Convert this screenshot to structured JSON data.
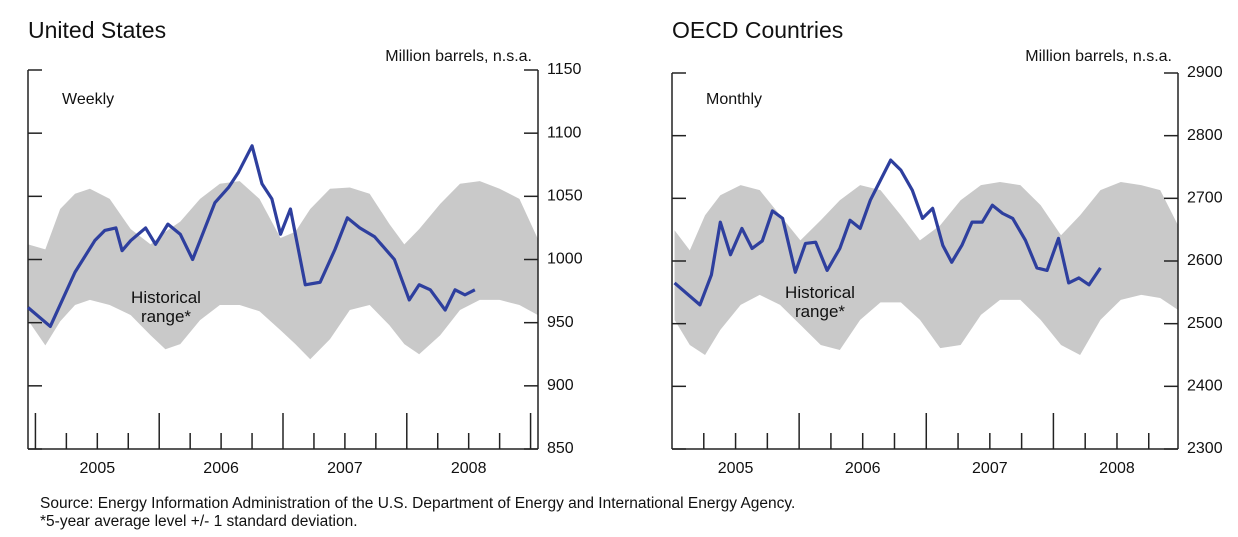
{
  "chart_data": [
    {
      "type": "line",
      "title": "United States",
      "y_axis_label": "Million barrels, n.s.a.",
      "note": "Weekly",
      "band_label": "Historical range*",
      "color": "#2e3f9e",
      "x": [
        2004.94,
        2005.12,
        2005.32,
        2005.48,
        2005.56,
        2005.65,
        2005.7,
        2005.77,
        2005.89,
        2005.97,
        2006.07,
        2006.17,
        2006.27,
        2006.33,
        2006.45,
        2006.56,
        2006.64,
        2006.75,
        2006.83,
        2006.91,
        2006.98,
        2007.06,
        2007.18,
        2007.3,
        2007.42,
        2007.52,
        2007.62,
        2007.74,
        2007.9,
        2008.02,
        2008.1,
        2008.19,
        2008.31,
        2008.39,
        2008.47,
        2008.55
      ],
      "values": [
        962,
        947,
        990,
        1015,
        1023,
        1025,
        1007,
        1015,
        1025,
        1012,
        1028,
        1020,
        1000,
        1015,
        1045,
        1057,
        1069,
        1090,
        1060,
        1048,
        1020,
        1040,
        980,
        982,
        1008,
        1033,
        1025,
        1018,
        1000,
        968,
        980,
        976,
        960,
        976,
        972,
        976
      ],
      "band": {
        "color": "#c9c9c9",
        "x": [
          2004.94,
          2005.08,
          2005.2,
          2005.32,
          2005.44,
          2005.6,
          2005.77,
          2005.93,
          2006.05,
          2006.17,
          2006.33,
          2006.49,
          2006.65,
          2006.81,
          2006.98,
          2007.1,
          2007.22,
          2007.38,
          2007.54,
          2007.7,
          2007.86,
          2007.98,
          2008.1,
          2008.27,
          2008.43,
          2008.59,
          2008.75,
          2008.91,
          2009.06
        ],
        "upper": [
          1012,
          1008,
          1040,
          1052,
          1056,
          1048,
          1024,
          1012,
          1022,
          1030,
          1048,
          1060,
          1062,
          1048,
          1017,
          1022,
          1040,
          1056,
          1057,
          1052,
          1028,
          1012,
          1024,
          1044,
          1060,
          1062,
          1056,
          1048,
          1016
        ],
        "lower": [
          952,
          932,
          951,
          964,
          968,
          964,
          956,
          940,
          929,
          933,
          952,
          964,
          964,
          959,
          944,
          933,
          921,
          937,
          960,
          964,
          948,
          933,
          925,
          940,
          960,
          968,
          968,
          964,
          956
        ]
      },
      "xlim": [
        2004.94,
        2009.06
      ],
      "ylim": [
        850,
        1150
      ],
      "yticks": [
        850,
        900,
        950,
        1000,
        1050,
        1100,
        1150
      ],
      "xticks": [
        {
          "value": 2005.5,
          "label": "2005"
        },
        {
          "value": 2006.5,
          "label": "2006"
        },
        {
          "value": 2007.5,
          "label": "2007"
        },
        {
          "value": 2008.5,
          "label": "2008"
        }
      ],
      "x_major_ticks": [
        2005,
        2006,
        2007,
        2008,
        2009
      ],
      "x_minor_ticks": [
        2005.25,
        2005.75,
        2006.25,
        2006.75,
        2007.25,
        2007.75,
        2008.25,
        2008.75
      ]
    },
    {
      "type": "line",
      "title": "OECD Countries",
      "y_axis_label": "Million barrels, n.s.a.",
      "note": "Monthly",
      "band_label": "Historical range*",
      "color": "#2e3f9e",
      "x": [
        2005.02,
        2005.22,
        2005.31,
        2005.38,
        2005.46,
        2005.55,
        2005.63,
        2005.71,
        2005.79,
        2005.87,
        2005.97,
        2006.05,
        2006.13,
        2006.22,
        2006.32,
        2006.4,
        2006.48,
        2006.56,
        2006.64,
        2006.72,
        2006.8,
        2006.89,
        2006.97,
        2007.05,
        2007.13,
        2007.2,
        2007.28,
        2007.36,
        2007.44,
        2007.52,
        2007.6,
        2007.68,
        2007.78,
        2007.87,
        2007.95,
        2008.04,
        2008.12,
        2008.2,
        2008.28,
        2008.37
      ],
      "values": [
        2565,
        2530,
        2578,
        2662,
        2610,
        2652,
        2620,
        2632,
        2680,
        2668,
        2582,
        2628,
        2630,
        2585,
        2620,
        2665,
        2652,
        2697,
        2729,
        2761,
        2745,
        2713,
        2668,
        2684,
        2625,
        2598,
        2625,
        2662,
        2662,
        2689,
        2676,
        2668,
        2633,
        2589,
        2585,
        2636,
        2565,
        2573,
        2562,
        2589
      ],
      "band": {
        "color": "#c9c9c9",
        "x": [
          2005.02,
          2005.14,
          2005.26,
          2005.38,
          2005.54,
          2005.69,
          2005.85,
          2006.01,
          2006.17,
          2006.32,
          2006.48,
          2006.64,
          2006.8,
          2006.95,
          2007.11,
          2007.27,
          2007.43,
          2007.58,
          2007.74,
          2007.9,
          2008.06,
          2008.21,
          2008.37,
          2008.53,
          2008.69,
          2008.84,
          2008.98
        ],
        "upper": [
          2649,
          2617,
          2673,
          2705,
          2721,
          2713,
          2673,
          2633,
          2665,
          2697,
          2721,
          2713,
          2673,
          2633,
          2657,
          2697,
          2721,
          2726,
          2721,
          2689,
          2641,
          2673,
          2713,
          2726,
          2721,
          2713,
          2657
        ],
        "lower": [
          2506,
          2466,
          2450,
          2490,
          2530,
          2546,
          2530,
          2498,
          2466,
          2458,
          2506,
          2534,
          2534,
          2506,
          2461,
          2466,
          2514,
          2538,
          2538,
          2506,
          2466,
          2450,
          2506,
          2538,
          2546,
          2541,
          2522
        ]
      },
      "xlim": [
        2005.0,
        2008.98
      ],
      "ylim": [
        2300,
        2900
      ],
      "yticks": [
        2300,
        2400,
        2500,
        2600,
        2700,
        2800,
        2900
      ],
      "xticks": [
        {
          "value": 2005.5,
          "label": "2005"
        },
        {
          "value": 2006.5,
          "label": "2006"
        },
        {
          "value": 2007.5,
          "label": "2007"
        },
        {
          "value": 2008.5,
          "label": "2008"
        }
      ],
      "x_major_ticks": [
        2006,
        2007,
        2008
      ],
      "x_minor_ticks": [
        2005.25,
        2005.75,
        2006.25,
        2006.75,
        2007.25,
        2007.75,
        2008.25,
        2008.75
      ]
    }
  ],
  "source": "Source: Energy Information Administration of the U.S. Department of Energy and International Energy Agency.",
  "footnote": "*5-year average level +/- 1 standard deviation."
}
